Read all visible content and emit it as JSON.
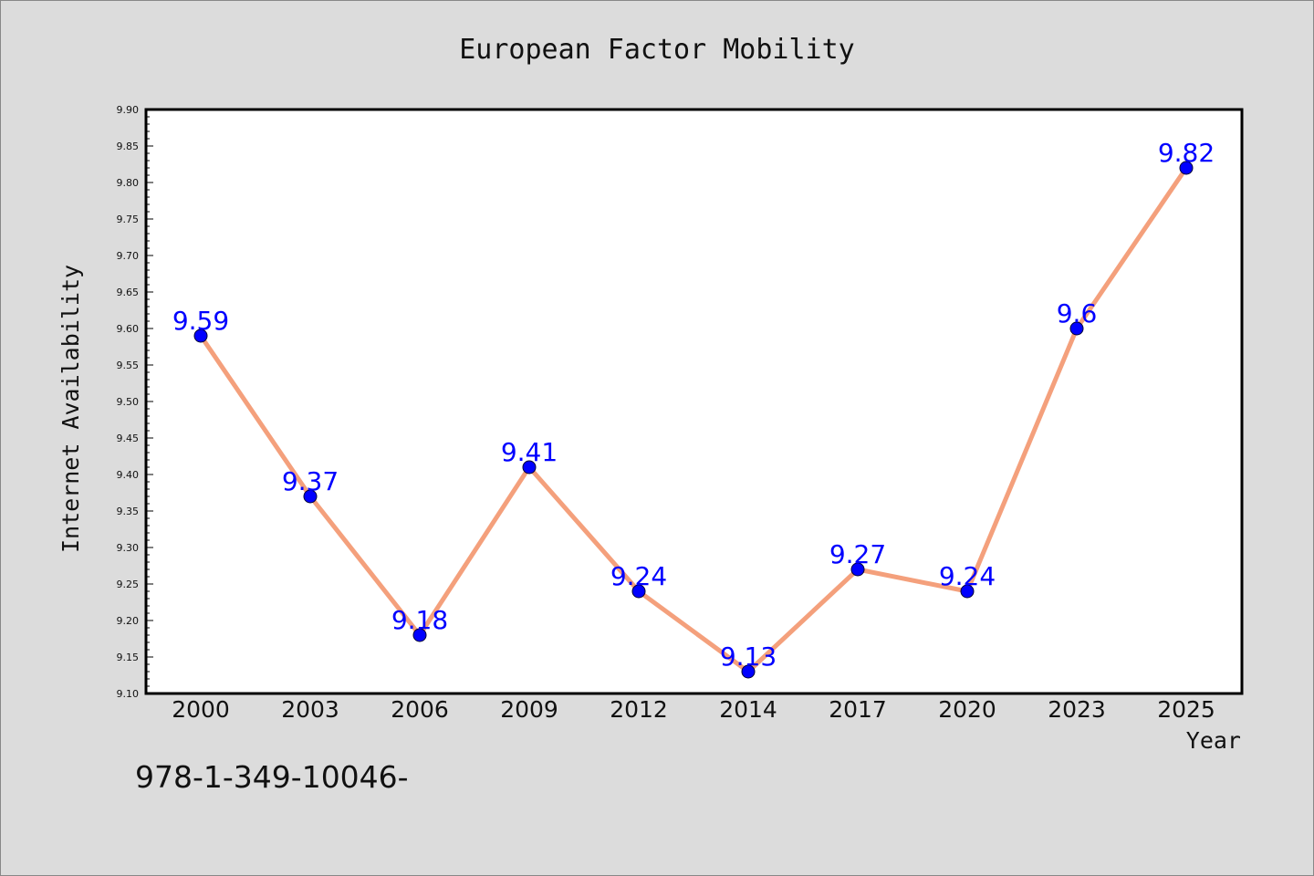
{
  "chart_data": {
    "type": "line",
    "title": "European Factor Mobility",
    "xlabel": "Year",
    "ylabel": "Internet Availability",
    "categories": [
      "2000",
      "2003",
      "2006",
      "2009",
      "2012",
      "2014",
      "2017",
      "2020",
      "2023",
      "2025"
    ],
    "series": [
      {
        "values": [
          9.59,
          9.37,
          9.18,
          9.41,
          9.24,
          9.13,
          9.27,
          9.24,
          9.6,
          9.82
        ],
        "color": "#f4a07c",
        "marker_color": "#0000ff"
      }
    ],
    "data_labels": [
      "9.59",
      "9.37",
      "9.18",
      "9.41",
      "9.24",
      "9.13",
      "9.27",
      "9.24",
      "9.6",
      "9.82"
    ],
    "ylim": [
      9.1,
      9.9
    ],
    "y_ticks": [
      "9.10",
      "9.15",
      "9.20",
      "9.25",
      "9.30",
      "9.35",
      "9.40",
      "9.45",
      "9.50",
      "9.55",
      "9.60",
      "9.65",
      "9.70",
      "9.75",
      "9.80",
      "9.85",
      "9.90"
    ],
    "grid": false,
    "legend": "none"
  },
  "footnote": "978-1-349-10046-",
  "colors": {
    "background": "#dcdcdc",
    "plot_background": "#ffffff",
    "line": "#f4a07c",
    "marker": "#0000ff",
    "data_label": "#0000ff"
  }
}
